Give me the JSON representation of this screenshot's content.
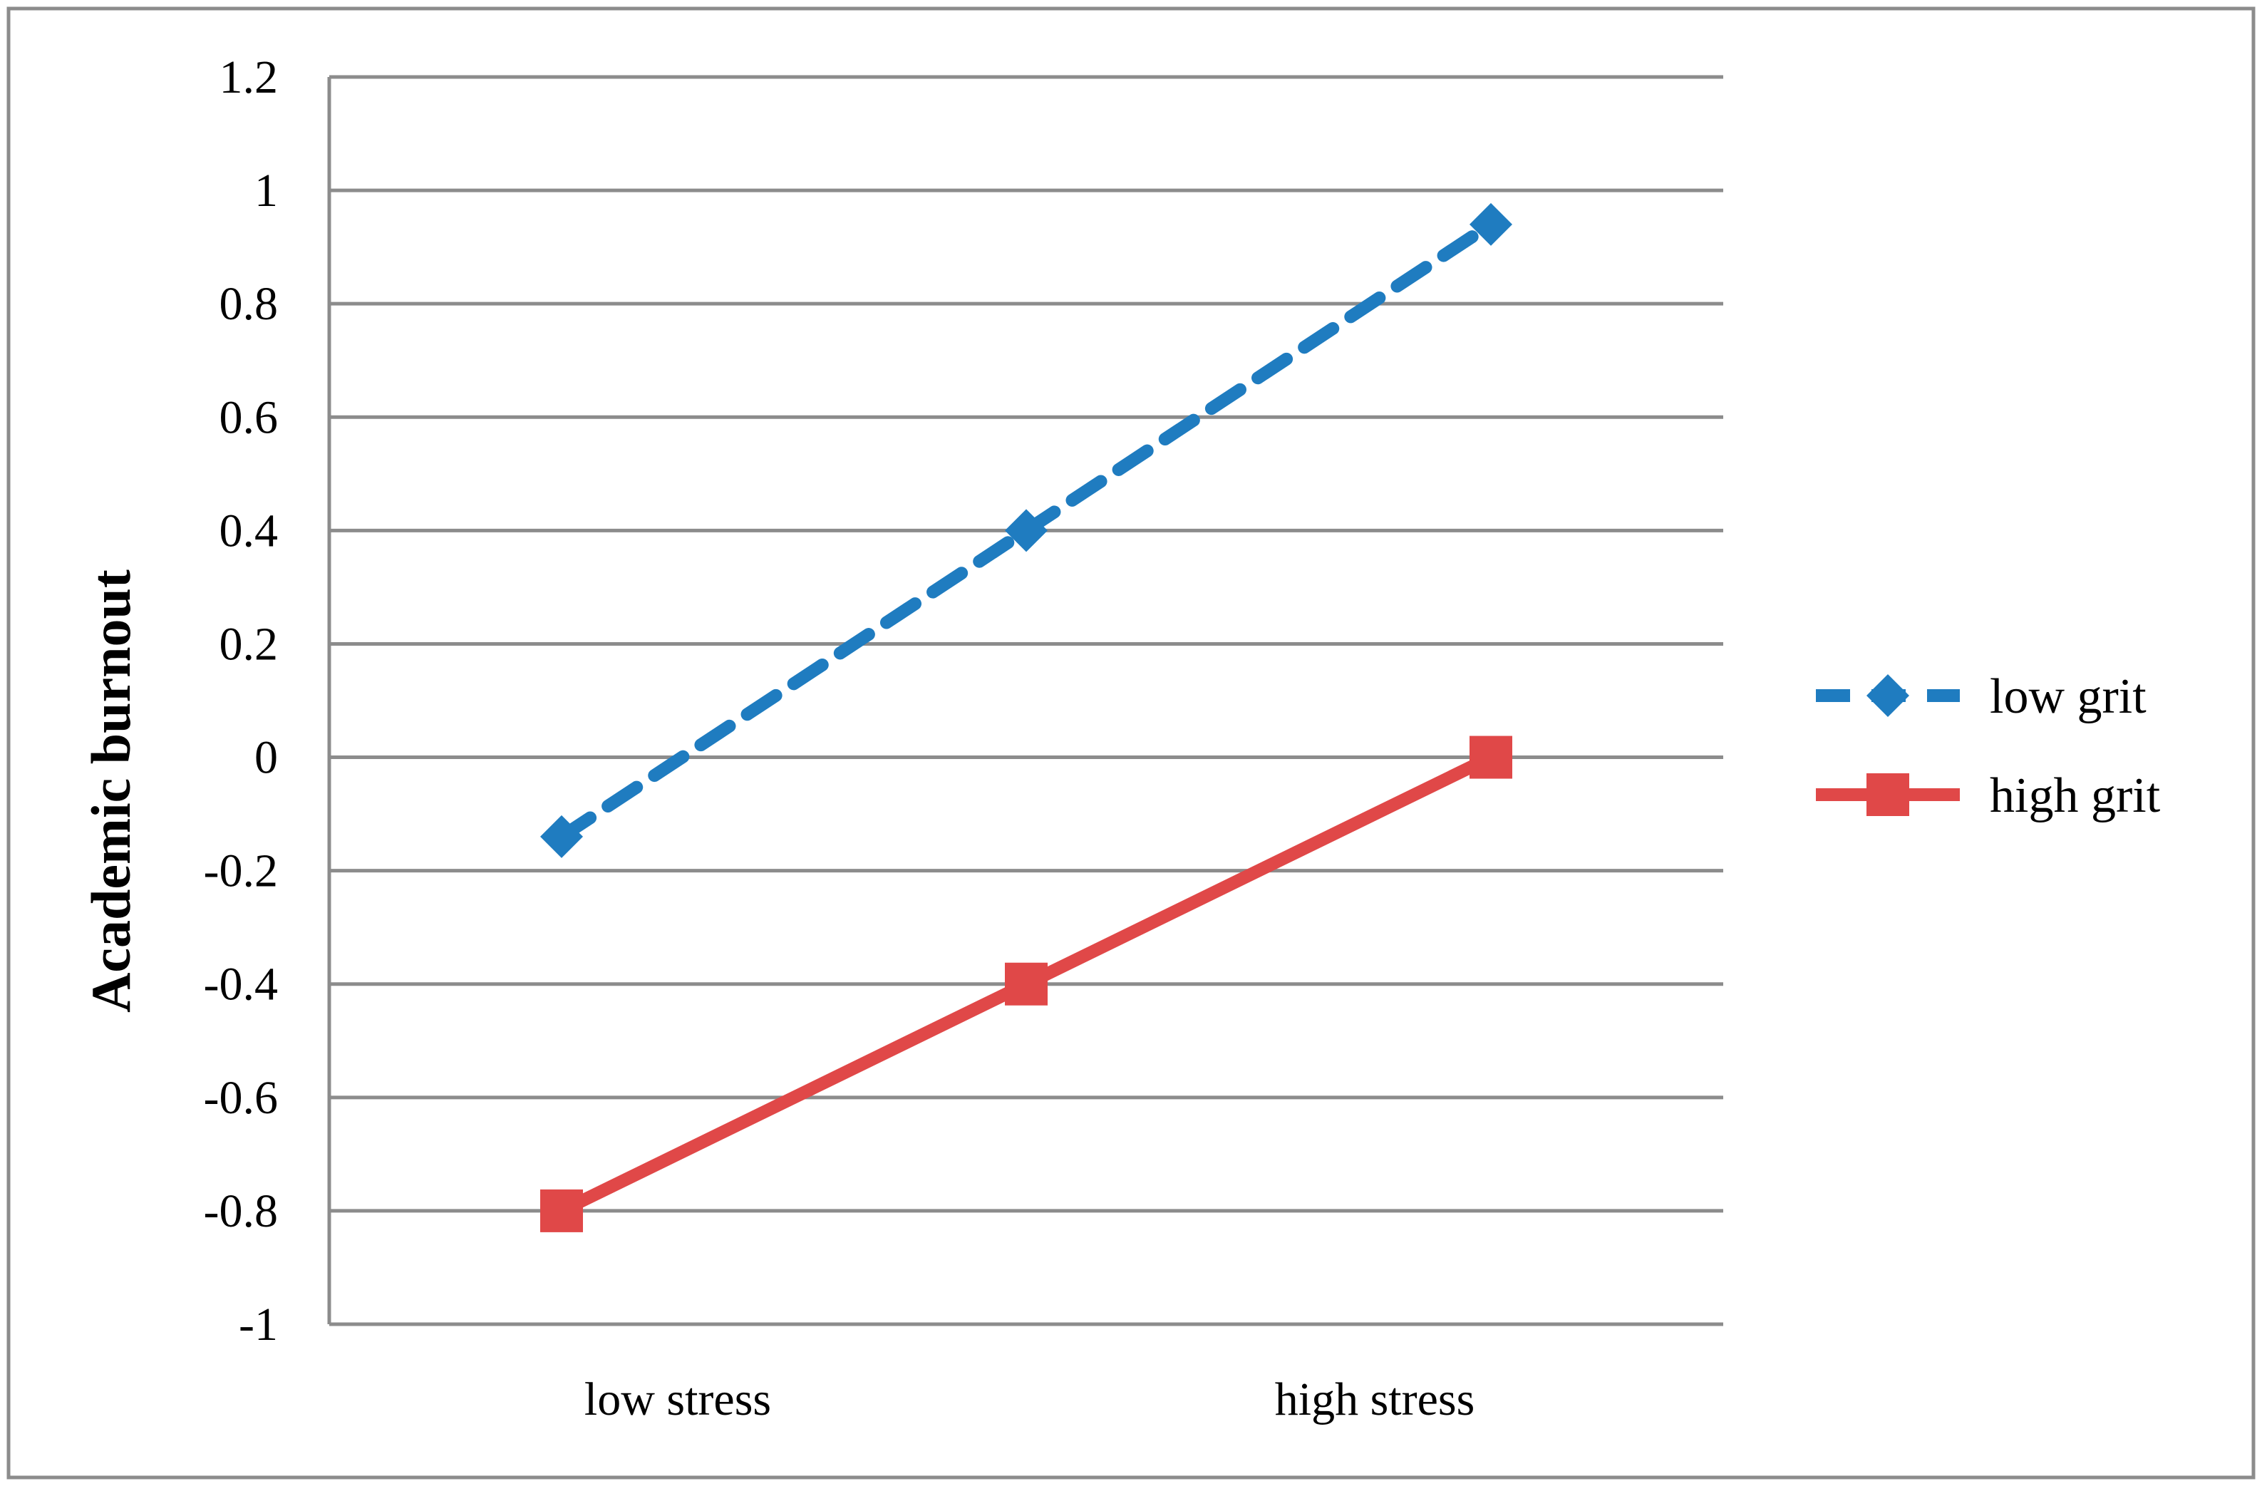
{
  "chart_data": {
    "type": "line",
    "title": "",
    "xlabel": "",
    "ylabel": "Academic burnout",
    "x_tick_labels": [
      "low stress",
      "high stress"
    ],
    "x_points": [
      1,
      2,
      3
    ],
    "ylim": [
      -1,
      1.2
    ],
    "y_ticks": [
      -1,
      -0.8,
      -0.6,
      -0.4,
      -0.2,
      0,
      0.2,
      0.4,
      0.6,
      0.8,
      1,
      1.2
    ],
    "grid": "horizontal",
    "legend_position": "right",
    "series": [
      {
        "name": "low grit",
        "values": [
          -0.14,
          0.4,
          0.94
        ],
        "color": "#1F7CC0",
        "line_style": "dashed",
        "marker": "diamond"
      },
      {
        "name": "high grit",
        "values": [
          -0.8,
          -0.4,
          0.0
        ],
        "color": "#E04848",
        "line_style": "solid",
        "marker": "square"
      }
    ]
  }
}
